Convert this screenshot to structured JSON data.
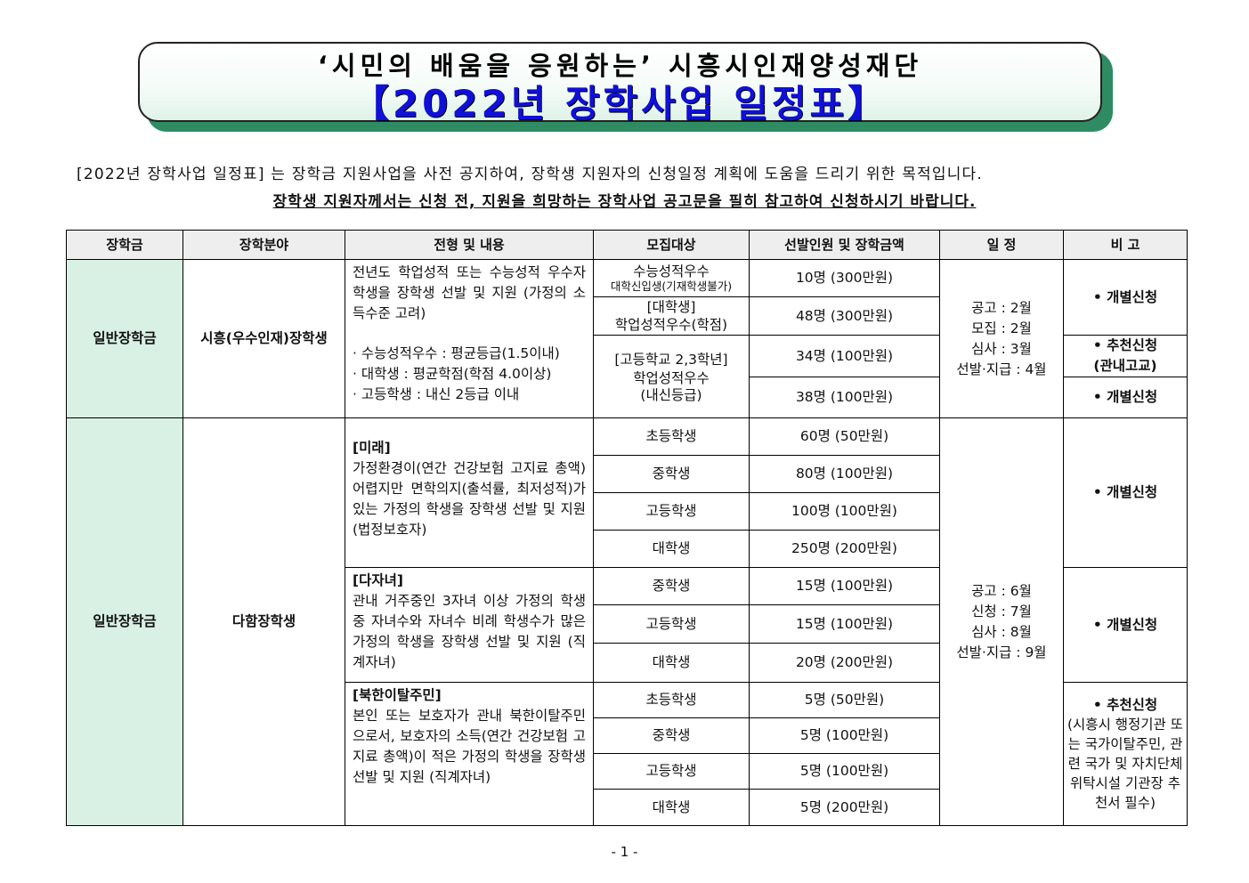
{
  "banner": {
    "subtitle": "‘시민의 배움을 응원하는’ 시흥시인재양성재단",
    "title": "【2022년 장학사업 일정표】"
  },
  "intro": {
    "line1": "[2022년 장학사업 일정표] 는 장학금 지원사업을 사전 공지하여, 장학생 지원자의 신청일정 계획에 도움을 드리기 위한 목적입니다.",
    "line2": "장학생 지원자께서는 신청 전, 지원을 희망하는 장학사업 공고문을 필히 참고하여 신청하시기 바랍니다."
  },
  "table": {
    "headers": [
      "장학금",
      "장학분야",
      "전형 및 내용",
      "모집대상",
      "선발인원 및 장학금액",
      "일 정",
      "비 고"
    ],
    "s1": {
      "type": "일반장학금",
      "field": "시흥(우수인재)장학생",
      "desc": [
        "전년도 학업성적 또는 수능성적 우수자 학생을 장학생 선발 및 지원 (가정의 소득수준 고려)",
        "· 수능성적우수 : 평균등급(1.5이내)",
        "· 대학생 : 평균학점(학점 4.0이상)",
        "· 고등학생 : 내신 2등급 이내"
      ],
      "targets": [
        {
          "a": "수능성적우수",
          "b": "대학신입생(기재학생불가)"
        },
        {
          "a": "[대학생]",
          "b": "학업성적우수(학점)"
        },
        {
          "a": "[고등학교 2,3학년]",
          "b": "학업성적우수",
          "c": "(내신등급)"
        }
      ],
      "amounts": [
        "10명 (300만원)",
        "48명 (300만원)",
        "34명 (100만원)",
        "38명 (100만원)"
      ],
      "schedule": [
        "공고 : 2월",
        "모집 : 2월",
        "심사 : 3월",
        "선발·지급 : 4월"
      ],
      "notes": [
        "• 개별신청",
        "• 추천신청",
        "(관내고교)",
        "• 개별신청"
      ]
    },
    "s2": {
      "type": "일반장학금",
      "field": "다함장학생",
      "schedule": [
        "공고 : 6월",
        "신청 : 7월",
        "심사 : 8월",
        "선발·지급 : 9월"
      ],
      "groups": [
        {
          "title": "[미래]",
          "desc": "가정환경이(연간 건강보험 고지료 총액) 어렵지만 면학의지(출석률, 최저성적)가 있는 가정의 학생을 장학생 선발 및 지원 (법정보호자)",
          "targets": [
            "초등학생",
            "중학생",
            "고등학생",
            "대학생"
          ],
          "amounts": [
            "60명 (50만원)",
            "80명 (100만원)",
            "100명 (100만원)",
            "250명 (200만원)"
          ],
          "note": "• 개별신청"
        },
        {
          "title": "[다자녀]",
          "desc": "관내 거주중인 3자녀 이상 가정의 학생 중 자녀수와 자녀수 비례 학생수가 많은 가정의 학생을 장학생 선발 및 지원 (직계자녀)",
          "targets": [
            "중학생",
            "고등학생",
            "대학생"
          ],
          "amounts": [
            "15명 (100만원)",
            "15명 (100만원)",
            "20명 (200만원)"
          ],
          "note": "• 개별신청"
        },
        {
          "title": "[북한이탈주민]",
          "desc": "본인 또는 보호자가 관내 북한이탈주민으로서, 보호자의 소득(연간 건강보험 고지료 총액)이 적은 가정의 학생을 장학생 선발 및 지원 (직계자녀)",
          "targets": [
            "초등학생",
            "중학생",
            "고등학생",
            "대학생"
          ],
          "amounts": [
            "5명 (50만원)",
            "5명 (100만원)",
            "5명 (100만원)",
            "5명 (200만원)"
          ],
          "note": "• 추천신청",
          "note_detail": "(시흥시 행정기관 또는 국가이탈주민, 관련 국가 및 자치단체 위탁시설 기관장 추천서 필수)"
        }
      ]
    }
  },
  "footer": {
    "page": "- 1 -"
  }
}
